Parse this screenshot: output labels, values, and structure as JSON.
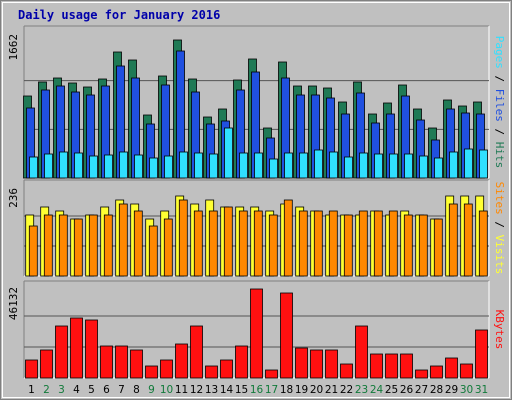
{
  "chart_data": {
    "type": "bar",
    "title": "Daily usage for January 2016",
    "categories": [
      "1",
      "2",
      "3",
      "4",
      "5",
      "6",
      "7",
      "8",
      "9",
      "10",
      "11",
      "12",
      "13",
      "14",
      "15",
      "16",
      "17",
      "18",
      "19",
      "20",
      "21",
      "22",
      "23",
      "24",
      "25",
      "26",
      "27",
      "28",
      "29",
      "30",
      "31"
    ],
    "weekend_days": [
      "2",
      "3",
      "9",
      "10",
      "16",
      "17",
      "23",
      "24",
      "30",
      "31"
    ],
    "colors": {
      "title": "#0000aa",
      "hits": "#1f7a55",
      "files": "#2050e0",
      "pages": "#30e0ff",
      "visits": "#ffff33",
      "sites": "#ff8800",
      "kbytes": "#ff1010",
      "weekday_label": "#000000",
      "weekend_label": "#117a3a",
      "panel": "#c0c0c0",
      "gridline": "#555555"
    },
    "panels": [
      {
        "name": "pages-files-hits",
        "ymax_label": "1662",
        "ymax": 1662,
        "series": [
          {
            "name": "Hits",
            "color": "#1f7a55",
            "values": [
              930,
              1090,
              1140,
              1080,
              1040,
              1130,
              1430,
              1340,
              720,
              1160,
              1570,
              1130,
              700,
              790,
              1110,
              1350,
              570,
              1320,
              1050,
              1050,
              1030,
              860,
              1090,
              730,
              850,
              1060,
              790,
              570,
              890,
              820,
              860
            ]
          },
          {
            "name": "Files",
            "color": "#2050e0",
            "values": [
              800,
              1000,
              1050,
              980,
              950,
              1050,
              1270,
              1140,
              620,
              1060,
              1450,
              980,
              620,
              650,
              1000,
              1210,
              450,
              1140,
              940,
              950,
              910,
              730,
              970,
              630,
              730,
              930,
              660,
              430,
              780,
              740,
              730
            ]
          },
          {
            "name": "Pages",
            "color": "#30e0ff",
            "values": [
              240,
              270,
              300,
              280,
              250,
              260,
              300,
              260,
              230,
              250,
              300,
              280,
              270,
              570,
              290,
              290,
              220,
              290,
              280,
              320,
              300,
              240,
              290,
              270,
              270,
              270,
              250,
              230,
              300,
              330,
              320
            ]
          }
        ]
      },
      {
        "name": "sites-visits",
        "ymax_label": "236",
        "ymax": 236,
        "series": [
          {
            "name": "Visits",
            "color": "#ffff33",
            "values": [
              160,
              180,
              170,
              150,
              160,
              180,
              200,
              190,
              150,
              170,
              210,
              190,
              200,
              180,
              180,
              180,
              170,
              190,
              180,
              170,
              160,
              160,
              160,
              170,
              160,
              170,
              160,
              150,
              210,
              210,
              210
            ]
          },
          {
            "name": "Sites",
            "color": "#ff8800",
            "values": [
              130,
              160,
              160,
              150,
              160,
              160,
              190,
              170,
              130,
              150,
              200,
              170,
              170,
              180,
              170,
              170,
              160,
              200,
              170,
              170,
              170,
              160,
              170,
              170,
              170,
              160,
              160,
              150,
              190,
              190,
              170
            ]
          }
        ]
      },
      {
        "name": "kbytes",
        "ymax_label": "46132",
        "ymax": 46132,
        "series": [
          {
            "name": "KBytes",
            "color": "#ff1010",
            "values": [
              9000,
              14000,
              26000,
              30000,
              29000,
              16000,
              16000,
              14000,
              6000,
              9000,
              17000,
              26000,
              6000,
              9000,
              16000,
              44000,
              4000,
              42000,
              15000,
              14000,
              14000,
              7000,
              26000,
              12000,
              12000,
              12000,
              4000,
              6000,
              10000,
              7000,
              24000
            ]
          }
        ]
      }
    ],
    "right_labels": [
      [
        {
          "text": "Pages",
          "color": "#30e0ff"
        },
        {
          "text": " / ",
          "color": "#000000"
        },
        {
          "text": "Files",
          "color": "#2050e0"
        },
        {
          "text": " / ",
          "color": "#000000"
        },
        {
          "text": "Hits",
          "color": "#1f7a55"
        }
      ],
      [
        {
          "text": "Sites",
          "color": "#ff8800"
        },
        {
          "text": " / ",
          "color": "#000000"
        },
        {
          "text": "Visits",
          "color": "#ffff33"
        }
      ],
      [
        {
          "text": "KBytes",
          "color": "#ff1010"
        }
      ]
    ]
  }
}
